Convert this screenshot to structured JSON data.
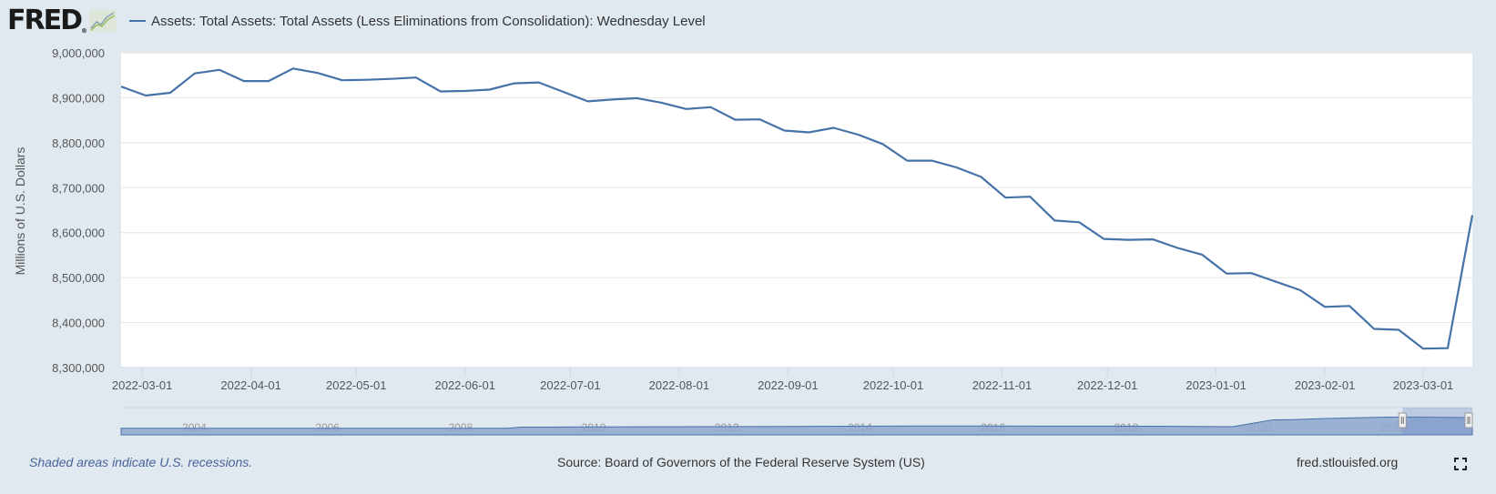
{
  "header": {
    "logo_text": "FRED",
    "logo_registered": "®",
    "logo_icon": "chart-line-icon",
    "series_legend": "Assets: Total Assets: Total Assets (Less Eliminations from Consolidation): Wednesday Level"
  },
  "footer": {
    "recession_note": "Shaded areas indicate U.S. recessions.",
    "source": "Source: Board of Governors of the Federal Reserve System (US)",
    "site": "fred.stlouisfed.org",
    "fullscreen_icon": "fullscreen-icon"
  },
  "colors": {
    "series": "#4572a7",
    "background": "#e1e9f0",
    "plot_bg": "#ffffff",
    "navigator_fill": "#8ea7cf"
  },
  "chart_data": {
    "type": "line",
    "title": "Assets: Total Assets: Total Assets (Less Eliminations from Consolidation): Wednesday Level",
    "xlabel": "",
    "ylabel": "Millions of U.S. Dollars",
    "ylim": [
      8300000,
      9000000
    ],
    "xlim": [
      "2022-02-23",
      "2023-03-15"
    ],
    "grid": true,
    "legend": "top-left",
    "yticks": [
      "8,300,000",
      "8,400,000",
      "8,500,000",
      "8,600,000",
      "8,700,000",
      "8,800,000",
      "8,900,000",
      "9,000,000"
    ],
    "ytick_values": [
      8300000,
      8400000,
      8500000,
      8600000,
      8700000,
      8800000,
      8900000,
      9000000
    ],
    "xticks": [
      "2022-03-01",
      "2022-04-01",
      "2022-05-01",
      "2022-06-01",
      "2022-07-01",
      "2022-08-01",
      "2022-09-01",
      "2022-10-01",
      "2022-11-01",
      "2022-12-01",
      "2023-01-01",
      "2023-02-01",
      "2023-03-01"
    ],
    "series": [
      {
        "name": "Assets: Total Assets: Total Assets (Less Eliminations from Consolidation): Wednesday Level",
        "x": [
          "2022-02-23",
          "2022-03-02",
          "2022-03-09",
          "2022-03-16",
          "2022-03-23",
          "2022-03-30",
          "2022-04-06",
          "2022-04-13",
          "2022-04-20",
          "2022-04-27",
          "2022-05-04",
          "2022-05-11",
          "2022-05-18",
          "2022-05-25",
          "2022-06-01",
          "2022-06-08",
          "2022-06-15",
          "2022-06-22",
          "2022-06-29",
          "2022-07-06",
          "2022-07-13",
          "2022-07-20",
          "2022-07-27",
          "2022-08-03",
          "2022-08-10",
          "2022-08-17",
          "2022-08-24",
          "2022-08-31",
          "2022-09-07",
          "2022-09-14",
          "2022-09-21",
          "2022-09-28",
          "2022-10-05",
          "2022-10-12",
          "2022-10-19",
          "2022-10-26",
          "2022-11-02",
          "2022-11-09",
          "2022-11-16",
          "2022-11-23",
          "2022-11-30",
          "2022-12-07",
          "2022-12-14",
          "2022-12-21",
          "2022-12-28",
          "2023-01-04",
          "2023-01-11",
          "2023-01-18",
          "2023-01-25",
          "2023-02-01",
          "2023-02-08",
          "2023-02-15",
          "2023-02-22",
          "2023-03-01",
          "2023-03-08",
          "2023-03-15"
        ],
        "values": [
          8925000,
          8905000,
          8911000,
          8954000,
          8962000,
          8937000,
          8937000,
          8965000,
          8955000,
          8939000,
          8940000,
          8942000,
          8945000,
          8914000,
          8915000,
          8918000,
          8932000,
          8934000,
          8913000,
          8892000,
          8896000,
          8899000,
          8889000,
          8875000,
          8879000,
          8851000,
          8852000,
          8827000,
          8823000,
          8833000,
          8818000,
          8797000,
          8760000,
          8760000,
          8745000,
          8724000,
          8678000,
          8680000,
          8627000,
          8623000,
          8586000,
          8584000,
          8585000,
          8566000,
          8551000,
          8509000,
          8510000,
          8491000,
          8472000,
          8435000,
          8437000,
          8386000,
          8384000,
          8342000,
          8343000,
          8639000
        ]
      }
    ],
    "navigator": {
      "years": [
        "2004",
        "2006",
        "2008",
        "2010",
        "2012",
        "2014",
        "2016",
        "2018",
        "2020",
        "2022"
      ],
      "range_start_year": 2002.9,
      "range_end_year": 2023.2,
      "selected_start": "2022-02-23",
      "selected_end": "2023-03-15",
      "shape": [
        [
          2002.9,
          0.73
        ],
        [
          2008.7,
          0.73
        ],
        [
          2008.9,
          0.85
        ],
        [
          2009.3,
          0.85
        ],
        [
          2010.0,
          0.88
        ],
        [
          2011.5,
          0.9
        ],
        [
          2013.0,
          0.93
        ],
        [
          2014.8,
          0.97
        ],
        [
          2016.0,
          0.97
        ],
        [
          2017.5,
          0.96
        ],
        [
          2018.5,
          0.95
        ],
        [
          2019.6,
          0.9
        ],
        [
          2020.2,
          1.65
        ],
        [
          2020.5,
          1.68
        ],
        [
          2021.0,
          1.8
        ],
        [
          2021.9,
          1.95
        ],
        [
          2022.3,
          1.96
        ],
        [
          2022.8,
          1.92
        ],
        [
          2023.2,
          1.9
        ]
      ]
    }
  }
}
